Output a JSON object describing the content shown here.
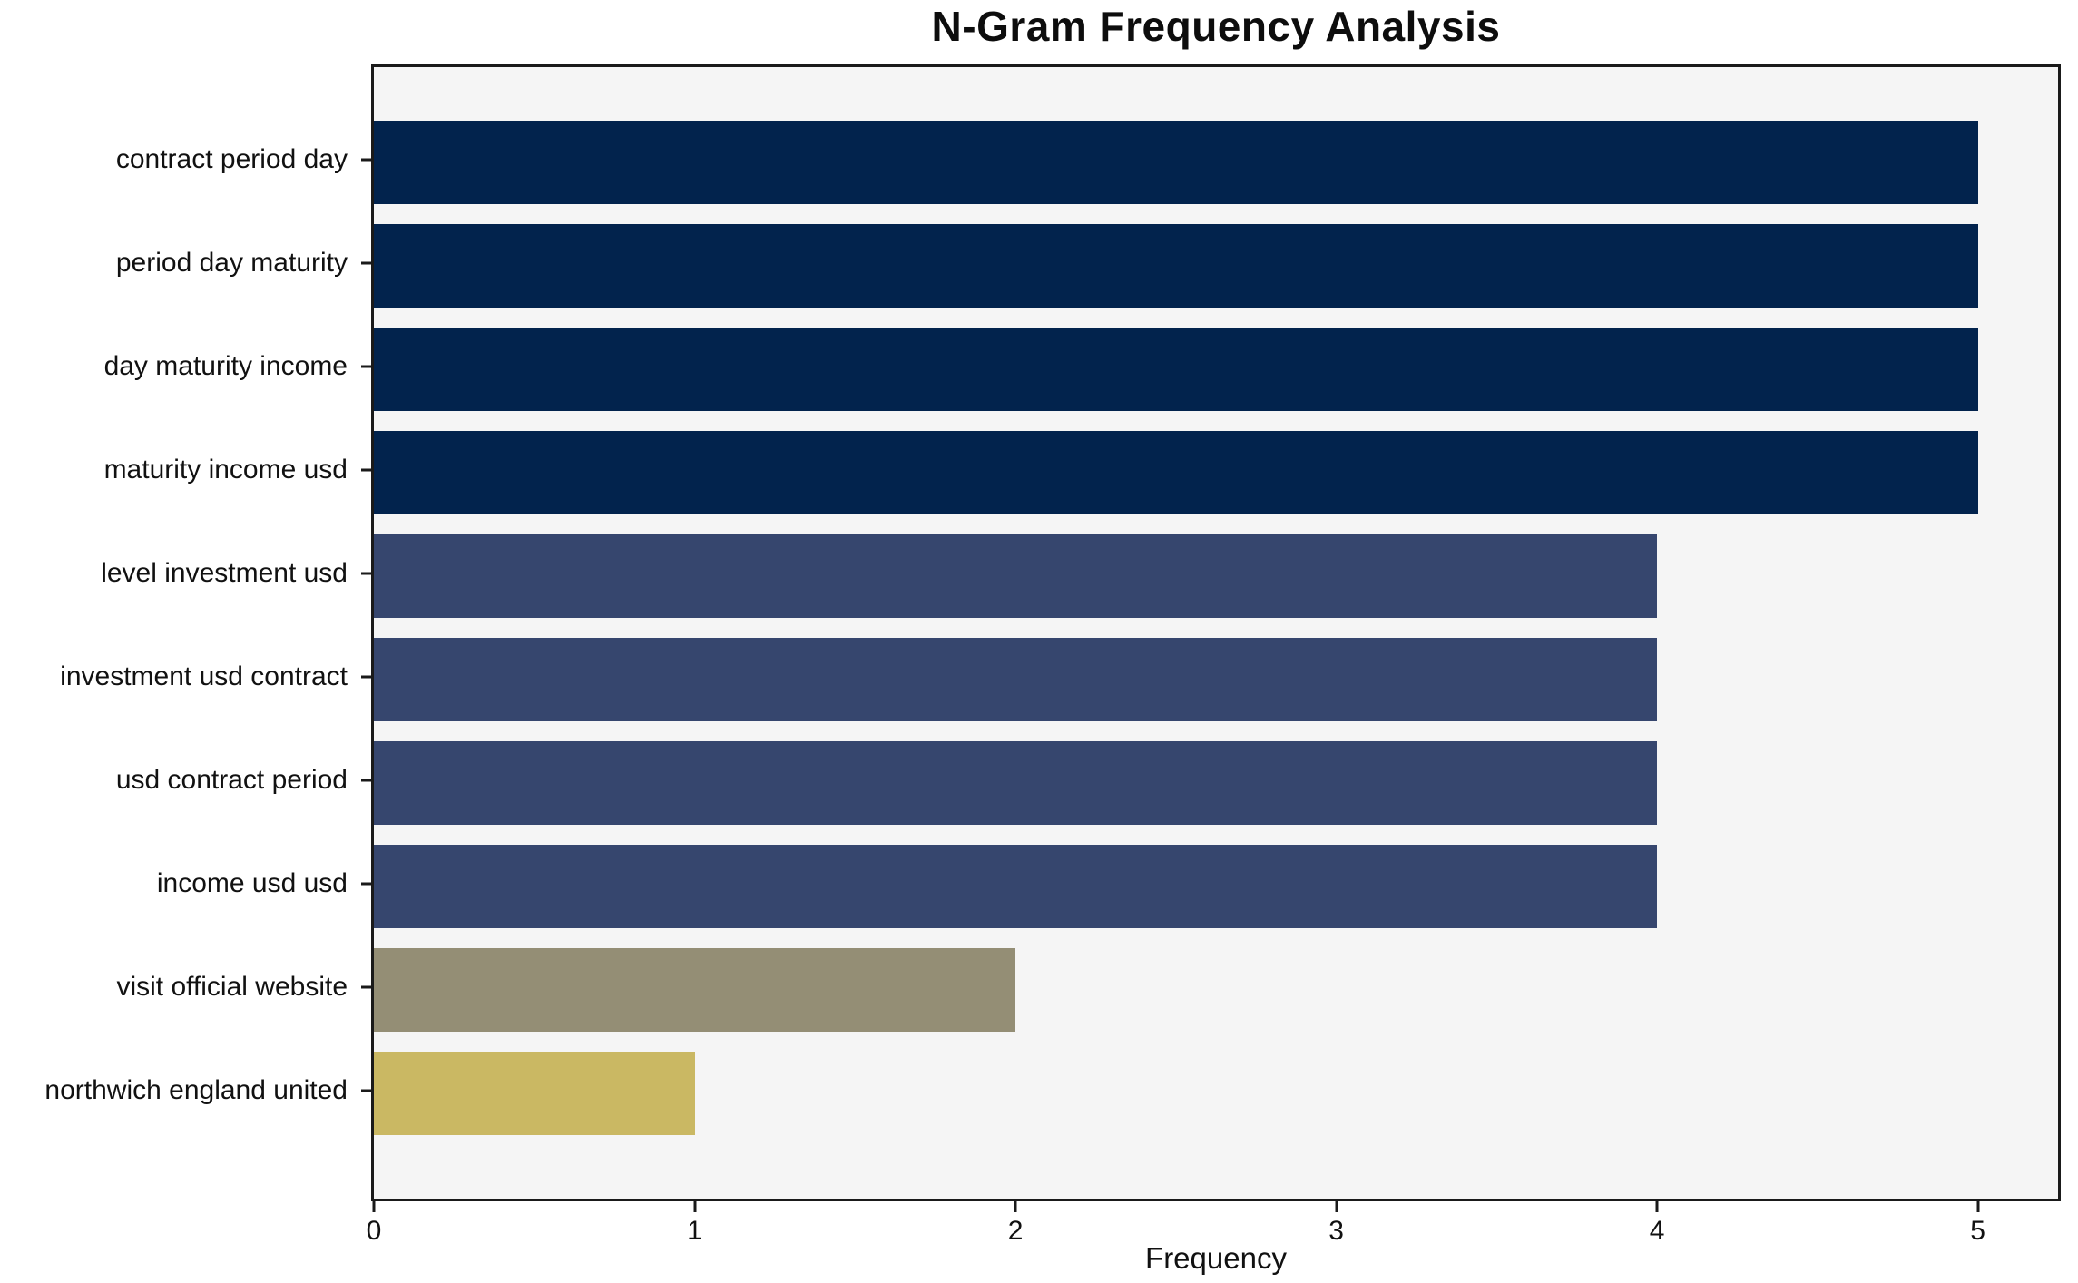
{
  "chart_data": {
    "type": "bar",
    "orientation": "horizontal",
    "title": "N-Gram Frequency Analysis",
    "xlabel": "Frequency",
    "ylabel": "",
    "categories": [
      "contract period day",
      "period day maturity",
      "day maturity income",
      "maturity income usd",
      "level investment usd",
      "investment usd contract",
      "usd contract period",
      "income usd usd",
      "visit official website",
      "northwich england united"
    ],
    "values": [
      5,
      5,
      5,
      5,
      4,
      4,
      4,
      4,
      2,
      1
    ],
    "bar_colors": [
      "#02234d",
      "#02234d",
      "#02234d",
      "#02234d",
      "#36466e",
      "#36466e",
      "#36466e",
      "#36466e",
      "#948e75",
      "#cab863"
    ],
    "xticks": [
      0,
      1,
      2,
      3,
      4,
      5
    ],
    "xlim": [
      0,
      5.25
    ],
    "grid": false,
    "legend": "none",
    "plot_background": "#f5f5f5",
    "figure_background": "#ffffff",
    "frame_color": "#1a1a1a"
  },
  "layout_text": {
    "title": "N-Gram Frequency Analysis",
    "xlabel": "Frequency"
  }
}
